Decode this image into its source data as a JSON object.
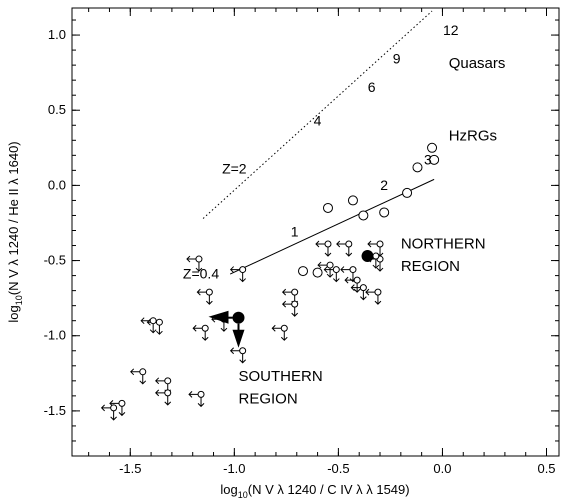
{
  "chart_data": {
    "type": "scatter",
    "xlabel": "log10(N V λ 1240 / C IV λ λ 1549)",
    "ylabel": "log10(N V λ 1240 / He II λ 1640)",
    "xlim": [
      -1.78,
      0.56
    ],
    "ylim": [
      -1.8,
      1.18
    ],
    "x_ticks": [
      -1.5,
      -1.0,
      -0.5,
      0.0,
      0.5
    ],
    "x_tick_labels": [
      "-1.5",
      "-1.0",
      "-0.5",
      "0.0",
      "0.5"
    ],
    "y_ticks": [
      -1.5,
      -1.0,
      -0.5,
      0.0,
      0.5,
      1.0
    ],
    "y_tick_labels": [
      "-1.5",
      "-1.0",
      "-0.5",
      "0.0",
      "0.5",
      "1.0"
    ],
    "grid": false,
    "series": [
      {
        "name": "Quasars",
        "style": "dotted",
        "points": [
          [
            -1.15,
            -0.22
          ],
          [
            -0.05,
            1.16
          ]
        ],
        "labels": [
          {
            "text": "Z=2",
            "x": -1.0,
            "y": 0.08
          },
          {
            "text": "4",
            "x": -0.6,
            "y": 0.4
          },
          {
            "text": "6",
            "x": -0.34,
            "y": 0.62
          },
          {
            "text": "9",
            "x": -0.22,
            "y": 0.81
          },
          {
            "text": "12",
            "x": 0.04,
            "y": 1.0
          }
        ]
      },
      {
        "name": "HzRGs",
        "style": "solid",
        "points": [
          [
            -1.02,
            -0.59
          ],
          [
            -0.04,
            0.04
          ]
        ],
        "labels": [
          {
            "text": "Z=0.4",
            "x": -1.16,
            "y": -0.62
          },
          {
            "text": "1",
            "x": -0.71,
            "y": -0.34
          },
          {
            "text": "2",
            "x": -0.28,
            "y": -0.03
          },
          {
            "text": "3",
            "x": -0.07,
            "y": 0.14
          }
        ]
      }
    ],
    "open_circles": [
      [
        -0.55,
        -0.15
      ],
      [
        -0.43,
        -0.1
      ],
      [
        -0.38,
        -0.2
      ],
      [
        -0.28,
        -0.18
      ],
      [
        -0.05,
        0.25
      ],
      [
        -0.04,
        0.17
      ],
      [
        -0.12,
        0.12
      ],
      [
        -0.17,
        -0.05
      ],
      [
        -0.6,
        -0.58
      ],
      [
        -0.67,
        -0.57
      ]
    ],
    "upper_limits_left": [
      [
        -0.96,
        -0.56
      ],
      [
        -1.17,
        -0.49
      ],
      [
        -1.12,
        -0.71
      ],
      [
        -1.14,
        -0.95
      ],
      [
        -1.36,
        -0.91
      ],
      [
        -1.39,
        -0.9
      ],
      [
        -1.44,
        -1.24
      ],
      [
        -1.32,
        -1.3
      ],
      [
        -1.32,
        -1.38
      ],
      [
        -1.16,
        -1.39
      ],
      [
        -1.54,
        -1.45
      ],
      [
        -1.58,
        -1.48
      ],
      [
        -1.05,
        -0.89
      ],
      [
        -0.96,
        -1.1
      ],
      [
        -0.71,
        -0.71
      ],
      [
        -0.71,
        -0.79
      ],
      [
        -0.76,
        -0.95
      ],
      [
        -0.55,
        -0.39
      ],
      [
        -0.54,
        -0.53
      ],
      [
        -0.51,
        -0.56
      ],
      [
        -0.43,
        -0.56
      ],
      [
        -0.41,
        -0.63
      ],
      [
        -0.45,
        -0.39
      ],
      [
        -0.38,
        -0.68
      ],
      [
        -0.31,
        -0.71
      ],
      [
        -0.3,
        -0.39
      ],
      [
        -0.3,
        -0.49
      ],
      [
        -0.32,
        -0.47
      ]
    ],
    "regions": [
      {
        "name": "NORTHERN REGION",
        "x": -0.36,
        "y": -0.47,
        "x_err_lower": 0.0,
        "y_err_lower": 0.0
      },
      {
        "name": "SOUTHERN REGION",
        "x": -0.98,
        "y": -0.88,
        "arrow": [
          "left",
          "down"
        ]
      }
    ],
    "annotations": [
      {
        "text": "Quasars",
        "x": 0.03,
        "y": 0.78
      },
      {
        "text": "HzRGs",
        "x": 0.03,
        "y": 0.3
      },
      {
        "text": "NORTHERN",
        "x": -0.2,
        "y": -0.42
      },
      {
        "text": "REGION",
        "x": -0.2,
        "y": -0.57
      },
      {
        "text": "SOUTHERN",
        "x": -0.98,
        "y": -1.3
      },
      {
        "text": "REGION",
        "x": -0.98,
        "y": -1.45
      }
    ]
  }
}
